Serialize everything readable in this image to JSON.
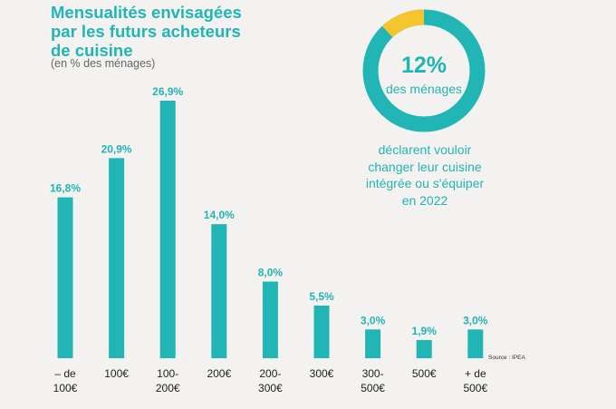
{
  "title": "Mensualités envisagées\npar les futurs acheteurs\nde cuisine",
  "subtitle": "(en % des ménages)",
  "chart_data": {
    "type": "bar",
    "title": "Mensualités envisagées par les futurs acheteurs de cuisine",
    "subtitle": "(en % des ménages)",
    "categories": [
      "– de\n100€",
      "100€",
      "100-\n200€",
      "200€",
      "200-\n300€",
      "300€",
      "300-\n500€",
      "500€",
      "+ de\n500€"
    ],
    "values": [
      16.8,
      20.9,
      26.9,
      14.0,
      8.0,
      5.5,
      3.0,
      1.9,
      3.0
    ],
    "value_labels": [
      "16,8%",
      "20,9%",
      "26,9%",
      "14,0%",
      "8,0%",
      "5,5%",
      "3,0%",
      "1,9%",
      "3,0%"
    ],
    "ylim": [
      0,
      26.9
    ],
    "grid": false,
    "colors": {
      "bar": "#21b5b5",
      "label": "#21b5b5",
      "tick": "#222222"
    }
  },
  "donut": {
    "percent_label": "12%",
    "value": 12,
    "sub_label": "des ménages",
    "description": "déclarent vouloir\nchanger leur cuisine\nintégrée ou s'équiper\nen 2022",
    "colors": {
      "main": "#21b5b5",
      "highlight": "#f5c52e"
    }
  },
  "source": "Source : IPEA"
}
